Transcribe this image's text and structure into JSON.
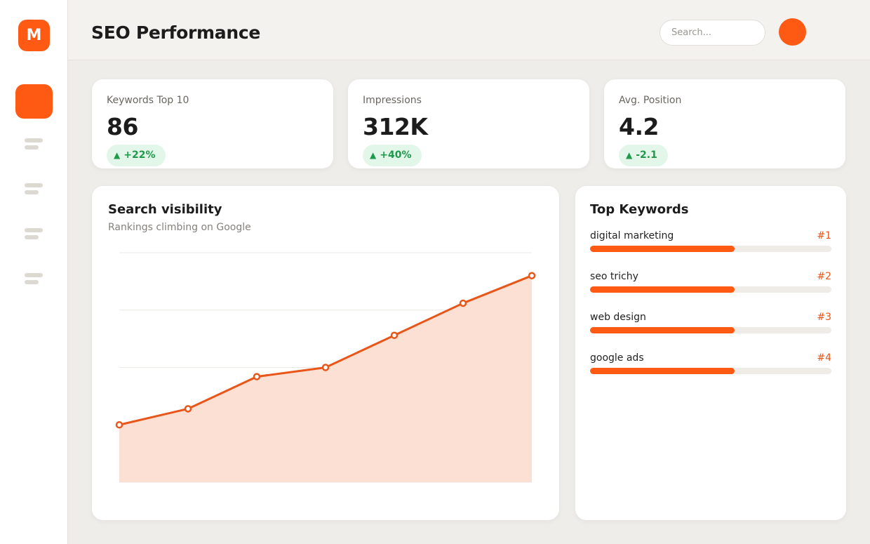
{
  "sidebar": {
    "logo_letter": "M",
    "items": [
      "active-nav-item",
      "nav-item-2",
      "nav-item-3",
      "nav-item-4",
      "nav-item-5"
    ]
  },
  "header": {
    "title": "SEO Performance",
    "search_placeholder": "Search..."
  },
  "stats": [
    {
      "label": "Keywords Top 10",
      "value": "86",
      "change": "+22%"
    },
    {
      "label": "Impressions",
      "value": "312K",
      "change": "+40%"
    },
    {
      "label": "Avg. Position",
      "value": "4.2",
      "change": "-2.1"
    }
  ],
  "visibility": {
    "title": "Search visibility",
    "subtitle": "Rankings climbing on Google"
  },
  "chart_data": {
    "type": "area",
    "title": "Search visibility",
    "subtitle": "Rankings climbing on Google",
    "xlabel": "",
    "ylabel": "",
    "ylim": [
      0,
      100
    ],
    "grid": true,
    "series": [
      {
        "values": [
          25,
          32,
          46,
          50,
          64,
          78,
          90
        ]
      }
    ],
    "color": "#e8561a",
    "fill": "#fde0d4"
  },
  "keywords": {
    "title": "Top Keywords",
    "items": [
      {
        "name": "digital marketing",
        "rank": "#1",
        "progress": 0.6
      },
      {
        "name": "seo trichy",
        "rank": "#2",
        "progress": 0.6
      },
      {
        "name": "web design",
        "rank": "#3",
        "progress": 0.6
      },
      {
        "name": "google ads",
        "rank": "#4",
        "progress": 0.6
      }
    ]
  },
  "colors": {
    "accent": "#ff5a14",
    "positive": "#1e9a4a",
    "positive_bg": "#e3f6ea"
  }
}
